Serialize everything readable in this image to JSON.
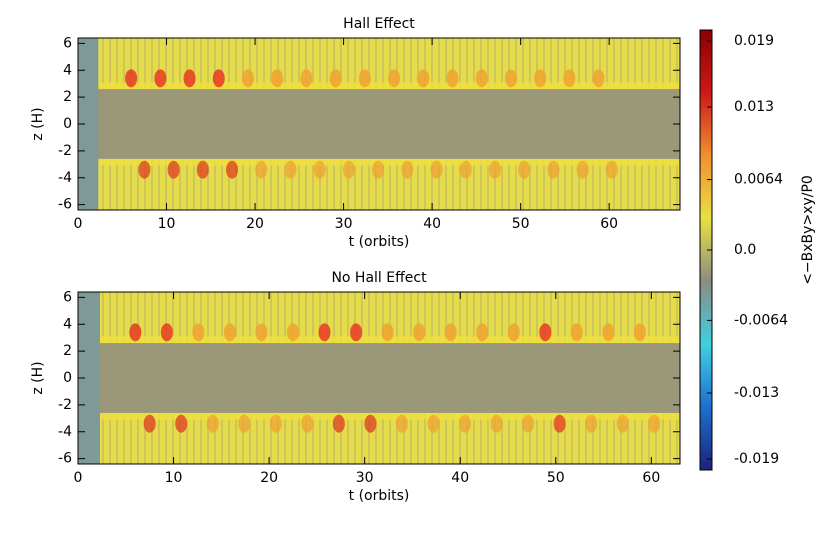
{
  "chart_data": [
    {
      "type": "heatmap",
      "title": "Hall Effect",
      "xlabel": "t (orbits)",
      "ylabel": "z (H)",
      "xlim": [
        0,
        68
      ],
      "ylim": [
        -6.4,
        6.4
      ],
      "xticks": [
        0,
        10,
        20,
        30,
        40,
        50,
        60
      ],
      "yticks": [
        -6,
        -4,
        -2,
        0,
        2,
        4,
        6
      ]
    },
    {
      "type": "heatmap",
      "title": "No Hall Effect",
      "xlabel": "t (orbits)",
      "ylabel": "z (H)",
      "xlim": [
        0,
        63
      ],
      "ylim": [
        -6.4,
        6.4
      ],
      "xticks": [
        0,
        10,
        20,
        30,
        40,
        50,
        60
      ],
      "yticks": [
        -6,
        -4,
        -2,
        0,
        2,
        4,
        6
      ]
    },
    {
      "type": "colorbar",
      "label": "<−BxBy>xy/P0",
      "clim": [
        -0.02,
        0.02
      ],
      "ticks": [
        -0.019,
        -0.013,
        -0.0064,
        {
          "value": 0,
          "label": "0.0"
        },
        0.0064,
        0.013,
        0.019
      ],
      "colors": [
        "#1a237e",
        "#1f6fd0",
        "#3fd0e0",
        "#8c8c84",
        "#e8e040",
        "#f09030",
        "#d01818",
        "#8b0000"
      ]
    }
  ]
}
